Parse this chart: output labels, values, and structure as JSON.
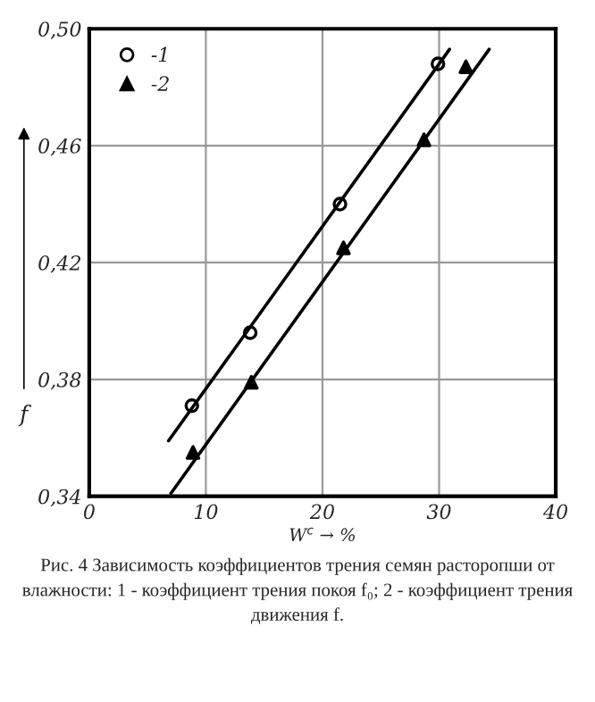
{
  "chart_data": {
    "type": "scatter",
    "xlabel": "W$^{c}$ → %",
    "ylabel": "f",
    "series": [
      {
        "name": "-1",
        "marker": "circle",
        "color": "#000000",
        "x": [
          8.8,
          13.8,
          21.5,
          29.9
        ],
        "values": [
          0.371,
          0.396,
          0.44,
          0.488
        ]
      },
      {
        "name": "-2",
        "marker": "triangle",
        "color": "#000000",
        "x": [
          8.9,
          13.9,
          21.8,
          28.7,
          32.3
        ],
        "values": [
          0.355,
          0.379,
          0.425,
          0.462,
          0.487
        ]
      },
      {
        "type": "line",
        "color": "#000000",
        "x": [
          6.8,
          30.9
        ],
        "values": [
          0.359,
          0.493
        ]
      },
      {
        "type": "line",
        "color": "#000000",
        "x": [
          7.0,
          34.3
        ],
        "values": [
          0.341,
          0.493
        ]
      }
    ],
    "xlim": [
      0,
      40
    ],
    "xticks": [
      0,
      10,
      20,
      30,
      40
    ],
    "ylim": [
      0.34,
      0.5
    ],
    "yticks": [
      {
        "value": 0.34,
        "label": "0,34"
      },
      {
        "value": 0.38,
        "label": "0,38"
      },
      {
        "value": 0.42,
        "label": "0,42"
      },
      {
        "value": 0.46,
        "label": "0,46"
      },
      {
        "value": 0.5,
        "label": "0,50"
      }
    ],
    "grid": true,
    "legend": "top left",
    "annotations": [
      "Рис. 4 Зависимость коэффициентов трения семян расторопши от влажности: 1 - коэффициент трения покоя f₀; 2 - коэффициент трения движения f."
    ]
  }
}
